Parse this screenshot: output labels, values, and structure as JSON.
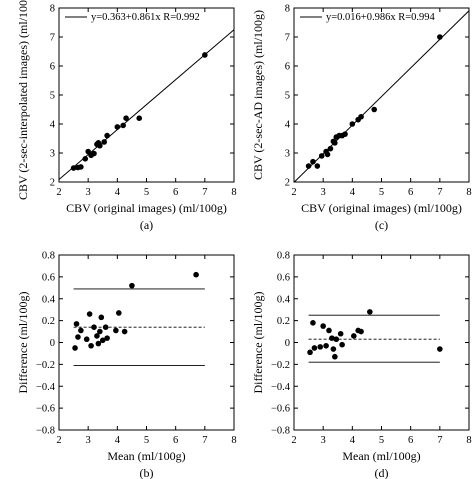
{
  "charts": [
    {
      "id": "a",
      "type": "scatter",
      "caption": "(a)",
      "xlabel": "CBV (original images) (ml/100g)",
      "ylabel": "CBV (2-sec-interpolated images) (ml/100g)",
      "xlim": [
        2,
        8
      ],
      "ylim": [
        2,
        8
      ],
      "xticks": [
        2,
        3,
        4,
        5,
        6,
        7,
        8
      ],
      "yticks": [
        2,
        3,
        4,
        5,
        6,
        7,
        8
      ],
      "legend": {
        "text": "y=0.363+0.861x  R=0.992",
        "placement": "top-left"
      },
      "fit": {
        "intercept": 0.363,
        "slope": 0.861
      },
      "points": [
        [
          2.5,
          2.48
        ],
        [
          2.65,
          2.5
        ],
        [
          2.75,
          2.52
        ],
        [
          2.9,
          2.8
        ],
        [
          3.0,
          3.05
        ],
        [
          3.1,
          2.92
        ],
        [
          3.2,
          2.98
        ],
        [
          3.3,
          3.3
        ],
        [
          3.35,
          3.35
        ],
        [
          3.4,
          3.25
        ],
        [
          3.55,
          3.38
        ],
        [
          3.65,
          3.6
        ],
        [
          4.0,
          3.9
        ],
        [
          4.2,
          3.95
        ],
        [
          4.3,
          4.2
        ],
        [
          4.75,
          4.2
        ],
        [
          7.0,
          6.38
        ]
      ]
    },
    {
      "id": "c",
      "type": "scatter",
      "caption": "(c)",
      "xlabel": "CBV (original images) (ml/100g)",
      "ylabel": "CBV (2-sec-AD images) (ml/100g)",
      "xlim": [
        2,
        8
      ],
      "ylim": [
        2,
        8
      ],
      "xticks": [
        2,
        3,
        4,
        5,
        6,
        7,
        8
      ],
      "yticks": [
        2,
        3,
        4,
        5,
        6,
        7,
        8
      ],
      "legend": {
        "text": "y=0.016+0.986x  R=0.994",
        "placement": "top-left"
      },
      "fit": {
        "intercept": 0.016,
        "slope": 0.986
      },
      "points": [
        [
          2.5,
          2.55
        ],
        [
          2.65,
          2.7
        ],
        [
          2.8,
          2.55
        ],
        [
          2.95,
          2.9
        ],
        [
          3.1,
          3.05
        ],
        [
          3.15,
          2.95
        ],
        [
          3.25,
          3.15
        ],
        [
          3.35,
          3.4
        ],
        [
          3.4,
          3.35
        ],
        [
          3.45,
          3.55
        ],
        [
          3.55,
          3.6
        ],
        [
          3.65,
          3.6
        ],
        [
          3.75,
          3.65
        ],
        [
          4.0,
          4.0
        ],
        [
          4.2,
          4.15
        ],
        [
          4.3,
          4.25
        ],
        [
          4.75,
          4.5
        ],
        [
          7.0,
          7.0
        ]
      ]
    },
    {
      "id": "b",
      "type": "scatter",
      "caption": "(b)",
      "xlabel": "Mean (ml/100g)",
      "ylabel": "Difference (ml/100g)",
      "xlim": [
        2,
        8
      ],
      "ylim": [
        -0.8,
        0.8
      ],
      "xticks": [
        2,
        3,
        4,
        5,
        6,
        7,
        8
      ],
      "yticks": [
        -0.8,
        -0.6,
        -0.4,
        -0.2,
        0,
        0.2,
        0.4,
        0.6,
        0.8
      ],
      "ytick_labels": [
        "−0.8",
        "−0.6",
        "−0.4",
        "−0.2",
        "0",
        "0.2",
        "0.4",
        "0.6",
        "0.8"
      ],
      "hlines": {
        "upper": 0.49,
        "mean": 0.14,
        "lower": -0.21
      },
      "points": [
        [
          2.55,
          -0.05
        ],
        [
          2.6,
          0.17
        ],
        [
          2.65,
          0.05
        ],
        [
          2.75,
          0.11
        ],
        [
          2.95,
          0.03
        ],
        [
          3.05,
          0.26
        ],
        [
          3.1,
          -0.03
        ],
        [
          3.2,
          0.14
        ],
        [
          3.3,
          0.06
        ],
        [
          3.35,
          -0.01
        ],
        [
          3.4,
          0.1
        ],
        [
          3.45,
          0.23
        ],
        [
          3.5,
          0.02
        ],
        [
          3.6,
          0.14
        ],
        [
          3.65,
          0.04
        ],
        [
          3.95,
          0.11
        ],
        [
          4.05,
          0.27
        ],
        [
          4.25,
          0.1
        ],
        [
          4.5,
          0.52
        ],
        [
          6.7,
          0.62
        ]
      ]
    },
    {
      "id": "d",
      "type": "scatter",
      "caption": "(d)",
      "xlabel": "Mean (ml/100g)",
      "ylabel": "Difference (ml/100g)",
      "xlim": [
        2,
        8
      ],
      "ylim": [
        -0.8,
        0.8
      ],
      "xticks": [
        2,
        3,
        4,
        5,
        6,
        7,
        8
      ],
      "yticks": [
        -0.8,
        -0.6,
        -0.4,
        -0.2,
        0,
        0.2,
        0.4,
        0.6,
        0.8
      ],
      "ytick_labels": [
        "−0.8",
        "−0.6",
        "−0.4",
        "−0.2",
        "0",
        "0.2",
        "0.4",
        "0.6",
        "0.8"
      ],
      "hlines": {
        "upper": 0.25,
        "mean": 0.03,
        "lower": -0.18
      },
      "points": [
        [
          2.55,
          -0.09
        ],
        [
          2.65,
          0.18
        ],
        [
          2.7,
          -0.05
        ],
        [
          2.9,
          -0.04
        ],
        [
          3.0,
          0.15
        ],
        [
          3.1,
          -0.03
        ],
        [
          3.2,
          0.11
        ],
        [
          3.3,
          0.04
        ],
        [
          3.35,
          -0.06
        ],
        [
          3.4,
          -0.13
        ],
        [
          3.45,
          0.03
        ],
        [
          3.6,
          0.08
        ],
        [
          3.65,
          -0.02
        ],
        [
          4.05,
          0.06
        ],
        [
          4.2,
          0.11
        ],
        [
          4.3,
          0.1
        ],
        [
          4.6,
          0.28
        ],
        [
          7.0,
          -0.06
        ]
      ]
    }
  ]
}
